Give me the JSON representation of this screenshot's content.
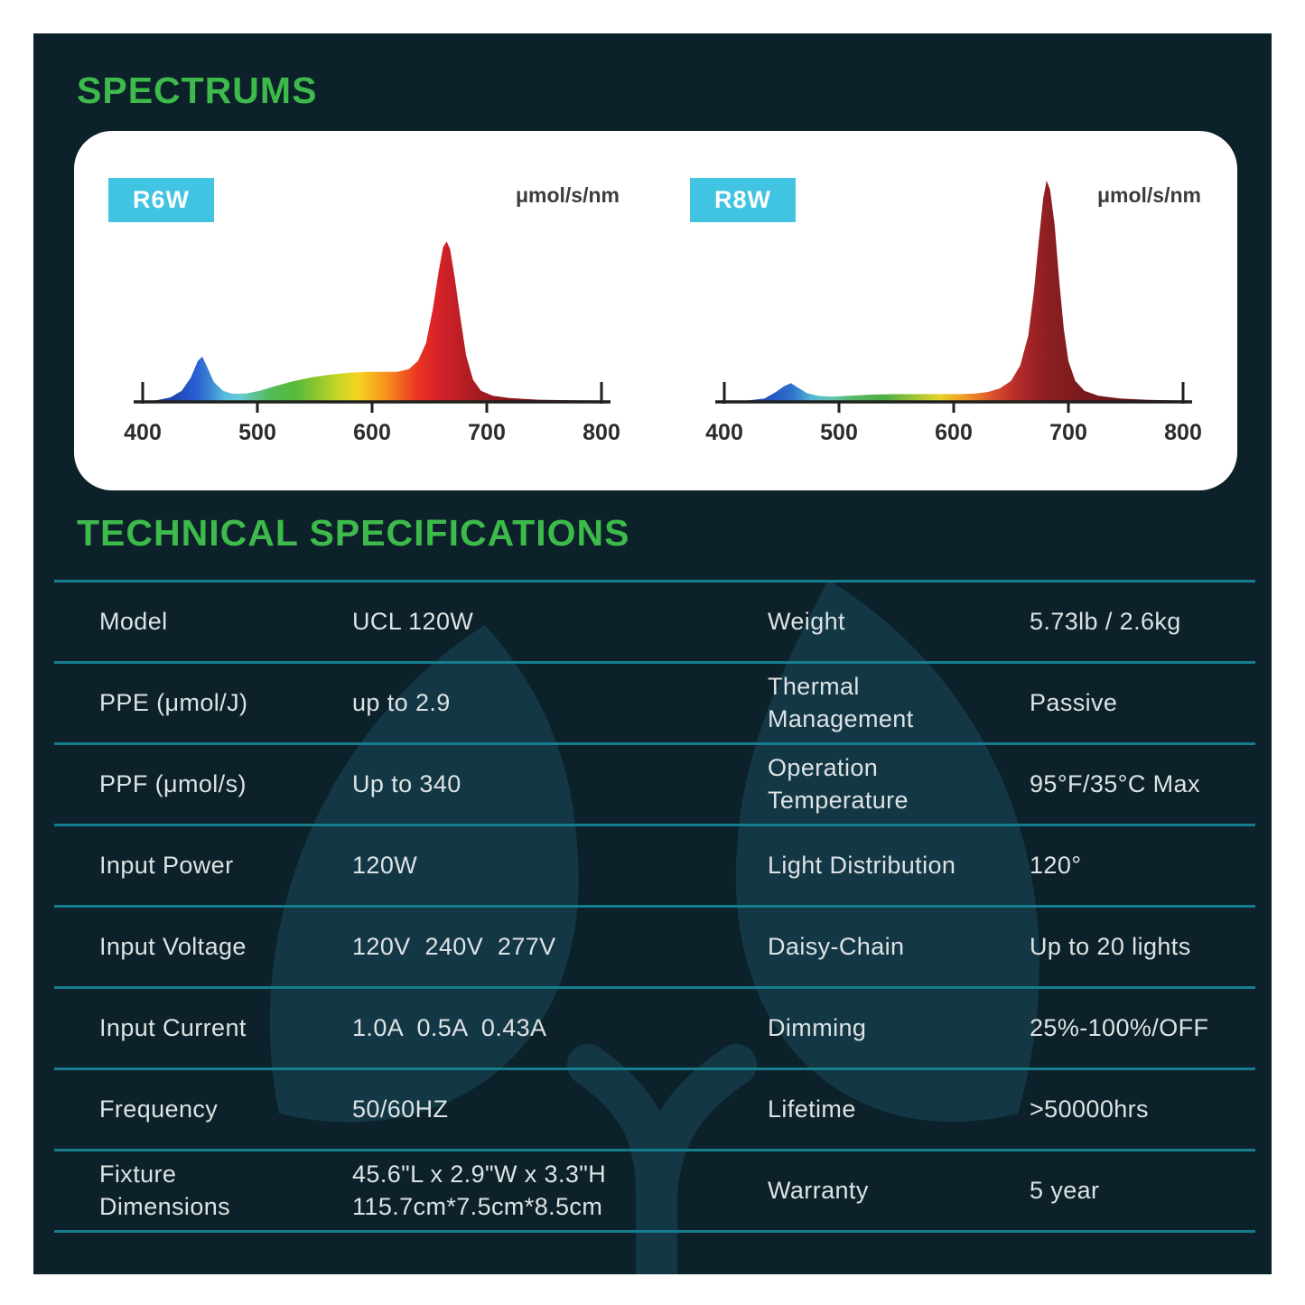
{
  "colors": {
    "page_bg": "#ffffff",
    "panel_bg": "#0c2129",
    "heading_green": "#3eb94b",
    "badge_cyan": "#41c4e1",
    "divider_teal": "#157d8d",
    "table_text": "#dde3e4",
    "watermark_leaf": "#143745"
  },
  "spectrums": {
    "title": "SPECTRUMS",
    "charts": [
      {
        "badge": "R6W",
        "unit": "μmol/s/nm"
      },
      {
        "badge": "R8W",
        "unit": "μmol/s/nm"
      }
    ]
  },
  "chart_data": [
    {
      "type": "area",
      "title": "R6W",
      "ylabel": "μmol/s/nm",
      "xlim": [
        400,
        800
      ],
      "x_ticks": [
        400,
        500,
        600,
        700,
        800
      ],
      "grid": false,
      "points": [
        [
          400,
          0.004
        ],
        [
          412,
          0.007
        ],
        [
          424,
          0.02
        ],
        [
          434,
          0.05
        ],
        [
          442,
          0.11
        ],
        [
          448,
          0.185
        ],
        [
          452,
          0.205
        ],
        [
          456,
          0.16
        ],
        [
          462,
          0.09
        ],
        [
          470,
          0.05
        ],
        [
          478,
          0.037
        ],
        [
          490,
          0.038
        ],
        [
          502,
          0.05
        ],
        [
          516,
          0.072
        ],
        [
          530,
          0.092
        ],
        [
          548,
          0.112
        ],
        [
          565,
          0.124
        ],
        [
          580,
          0.132
        ],
        [
          595,
          0.136
        ],
        [
          610,
          0.136
        ],
        [
          622,
          0.136
        ],
        [
          632,
          0.148
        ],
        [
          640,
          0.185
        ],
        [
          647,
          0.265
        ],
        [
          653,
          0.42
        ],
        [
          658,
          0.59
        ],
        [
          662,
          0.7
        ],
        [
          665,
          0.725
        ],
        [
          668,
          0.69
        ],
        [
          672,
          0.565
        ],
        [
          677,
          0.38
        ],
        [
          682,
          0.21
        ],
        [
          688,
          0.1
        ],
        [
          695,
          0.05
        ],
        [
          705,
          0.028
        ],
        [
          720,
          0.017
        ],
        [
          745,
          0.01
        ],
        [
          775,
          0.007
        ],
        [
          800,
          0.006
        ]
      ],
      "gradient": [
        [
          400,
          "#20307f"
        ],
        [
          430,
          "#1f49b5"
        ],
        [
          448,
          "#2a62d6"
        ],
        [
          460,
          "#3f8ad2"
        ],
        [
          472,
          "#57bede"
        ],
        [
          484,
          "#66cbd9"
        ],
        [
          496,
          "#5fc49a"
        ],
        [
          512,
          "#54ba55"
        ],
        [
          532,
          "#55b93c"
        ],
        [
          552,
          "#8cc72f"
        ],
        [
          572,
          "#cdd826"
        ],
        [
          588,
          "#f4d320"
        ],
        [
          602,
          "#f7af1e"
        ],
        [
          614,
          "#f68c1d"
        ],
        [
          626,
          "#f2611f"
        ],
        [
          640,
          "#e93322"
        ],
        [
          656,
          "#d82329"
        ],
        [
          672,
          "#c31f26"
        ],
        [
          690,
          "#a81c21"
        ],
        [
          715,
          "#8a191c"
        ],
        [
          760,
          "#701616"
        ],
        [
          800,
          "#641414"
        ]
      ]
    },
    {
      "type": "area",
      "title": "R8W",
      "ylabel": "μmol/s/nm",
      "xlim": [
        400,
        800
      ],
      "x_ticks": [
        400,
        500,
        600,
        700,
        800
      ],
      "grid": false,
      "points": [
        [
          400,
          0.003
        ],
        [
          420,
          0.006
        ],
        [
          435,
          0.015
        ],
        [
          445,
          0.045
        ],
        [
          452,
          0.07
        ],
        [
          458,
          0.085
        ],
        [
          464,
          0.065
        ],
        [
          472,
          0.04
        ],
        [
          482,
          0.027
        ],
        [
          495,
          0.024
        ],
        [
          510,
          0.028
        ],
        [
          530,
          0.033
        ],
        [
          550,
          0.035
        ],
        [
          570,
          0.035
        ],
        [
          590,
          0.035
        ],
        [
          605,
          0.035
        ],
        [
          618,
          0.037
        ],
        [
          630,
          0.045
        ],
        [
          640,
          0.06
        ],
        [
          650,
          0.095
        ],
        [
          658,
          0.165
        ],
        [
          665,
          0.3
        ],
        [
          670,
          0.5
        ],
        [
          674,
          0.72
        ],
        [
          678,
          0.92
        ],
        [
          681,
          1.0
        ],
        [
          684,
          0.96
        ],
        [
          688,
          0.8
        ],
        [
          692,
          0.55
        ],
        [
          696,
          0.33
        ],
        [
          700,
          0.185
        ],
        [
          706,
          0.095
        ],
        [
          714,
          0.05
        ],
        [
          726,
          0.028
        ],
        [
          745,
          0.015
        ],
        [
          770,
          0.009
        ],
        [
          800,
          0.006
        ]
      ],
      "gradient": [
        [
          400,
          "#203a8f"
        ],
        [
          440,
          "#2456c0"
        ],
        [
          460,
          "#2f74cc"
        ],
        [
          476,
          "#55b4d4"
        ],
        [
          492,
          "#67c4b4"
        ],
        [
          512,
          "#57b763"
        ],
        [
          540,
          "#4fae46"
        ],
        [
          568,
          "#a5c634"
        ],
        [
          588,
          "#e6d229"
        ],
        [
          604,
          "#f0a724"
        ],
        [
          620,
          "#ea7b26"
        ],
        [
          636,
          "#d74a2b"
        ],
        [
          652,
          "#bc302a"
        ],
        [
          668,
          "#a02326"
        ],
        [
          684,
          "#8b1e22"
        ],
        [
          712,
          "#7a1a1d"
        ],
        [
          760,
          "#671616"
        ],
        [
          800,
          "#5c1414"
        ]
      ]
    }
  ],
  "tech_specs": {
    "title": "TECHNICAL SPECIFICATIONS",
    "rows": [
      {
        "label": "Model",
        "value": "UCL 120W",
        "label2": "Weight",
        "value2": "5.73lb / 2.6kg"
      },
      {
        "label": "PPE (μmol/J)",
        "value": "up to 2.9",
        "label2": "Thermal\nManagement",
        "value2": "Passive"
      },
      {
        "label": "PPF (μmol/s)",
        "value": "Up to 340",
        "label2": "Operation\nTemperature",
        "value2": "95°F/35°C Max"
      },
      {
        "label": "Input Power",
        "value": "120W",
        "label2": "Light Distribution",
        "value2": "120°"
      },
      {
        "label": "Input Voltage",
        "value": "120V  240V  277V",
        "label2": "Daisy-Chain",
        "value2": "Up to 20 lights"
      },
      {
        "label": "Input Current",
        "value": "1.0A  0.5A  0.43A",
        "label2": "Dimming",
        "value2": "25%-100%/OFF"
      },
      {
        "label": "Frequency",
        "value": "50/60HZ",
        "label2": "Lifetime",
        "value2": ">50000hrs"
      },
      {
        "label": "Fixture\nDimensions",
        "value": "45.6\"L x 2.9\"W x 3.3\"H\n115.7cm*7.5cm*8.5cm",
        "label2": "Warranty",
        "value2": "5 year"
      }
    ]
  }
}
